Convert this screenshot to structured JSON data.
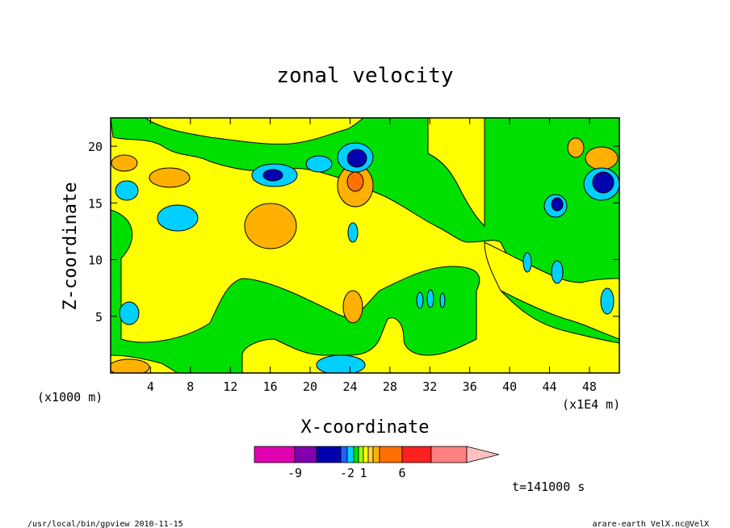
{
  "chart_data": {
    "type": "heatmap",
    "title": "zonal velocity",
    "xlabel": "X-coordinate",
    "ylabel": "Z-coordinate",
    "x_units": "(x1E4 m)",
    "y_units": "(x1000 m)",
    "xlim": [
      0,
      51
    ],
    "ylim": [
      0,
      22.5
    ],
    "x_ticks": [
      4,
      8,
      12,
      16,
      20,
      24,
      28,
      32,
      36,
      40,
      44,
      48
    ],
    "y_ticks": [
      5,
      10,
      15,
      20
    ],
    "time_label": "t=141000 s",
    "colorbar": {
      "tick_labels": [
        "-9",
        "-2",
        "1",
        "6"
      ],
      "colors": [
        "#e000b0",
        "#8000b0",
        "#0000b0",
        "#2060ff",
        "#00d0ff",
        "#00e000",
        "#a0ff00",
        "#ffff00",
        "#ffd040",
        "#ffb000",
        "#ff7000",
        "#ff2020",
        "#ff8080",
        "#ffc0c0"
      ]
    },
    "background_value": "slightly positive (yellow) over most of domain",
    "features": [
      {
        "type": "negative",
        "x": 25,
        "z": 19.5,
        "label_color": "#0000b0"
      },
      {
        "type": "negative",
        "x": 49,
        "z": 17.5,
        "label_color": "#0000b0"
      },
      {
        "type": "positive",
        "x": 24.5,
        "z": 17,
        "label_color": "#ffb000"
      },
      {
        "type": "positive",
        "x": 16,
        "z": 13.5,
        "label_color": "#ffb000"
      }
    ]
  },
  "footer": {
    "left": "/usr/local/bin/gpview  2010-11-15",
    "right": "arare-earth_VelX.nc@VelX"
  }
}
